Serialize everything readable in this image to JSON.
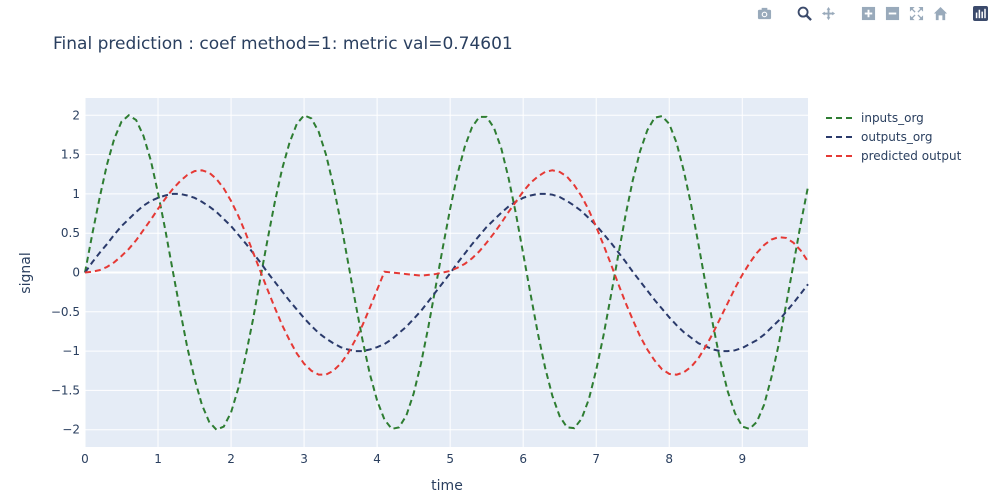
{
  "title": "Final prediction : coef method=1: metric val=0.74601",
  "modebar": {
    "buttons": [
      "camera-icon",
      "zoom-icon",
      "pan-icon",
      "zoom-in-icon",
      "zoom-out-icon",
      "autoscale-icon",
      "home-icon",
      "plotly-logo-icon"
    ]
  },
  "colors": {
    "plot_bg": "#e5ecf6",
    "grid": "#ffffff",
    "text": "#2a3f5f",
    "inputs_org": "#2e7d32",
    "outputs_org": "#2a3a6b",
    "predicted": "#e53935"
  },
  "chart_data": {
    "type": "line",
    "title": "Final prediction : coef method=1: metric val=0.74601",
    "xlabel": "time",
    "ylabel": "signal",
    "xlim": [
      0,
      9.9
    ],
    "ylim": [
      -2.22,
      2.22
    ],
    "xticks": [
      0,
      1,
      2,
      3,
      4,
      5,
      6,
      7,
      8,
      9
    ],
    "yticks": [
      2,
      1.5,
      1,
      0.5,
      0,
      -0.5,
      -1,
      -1.5,
      -2
    ],
    "ytick_labels": [
      "2",
      "1.5",
      "1",
      "0.5",
      "0",
      "−0.5",
      "−1",
      "−1.5",
      "−2"
    ],
    "grid": true,
    "legend_position": "top-right outside",
    "x": [
      0,
      0.1,
      0.2,
      0.3,
      0.4,
      0.5,
      0.6,
      0.7,
      0.8,
      0.9,
      1.0,
      1.1,
      1.2,
      1.3,
      1.4,
      1.5,
      1.6,
      1.7,
      1.8,
      1.9,
      2.0,
      2.1,
      2.2,
      2.3,
      2.4,
      2.5,
      2.6,
      2.7,
      2.8,
      2.9,
      3.0,
      3.1,
      3.2,
      3.3,
      3.4,
      3.5,
      3.6,
      3.7,
      3.8,
      3.9,
      4.0,
      4.1,
      4.2,
      4.3,
      4.4,
      4.5,
      4.6,
      4.7,
      4.8,
      4.9,
      5.0,
      5.1,
      5.2,
      5.3,
      5.4,
      5.5,
      5.6,
      5.7,
      5.8,
      5.9,
      6.0,
      6.1,
      6.2,
      6.3,
      6.4,
      6.5,
      6.6,
      6.7,
      6.8,
      6.9,
      7.0,
      7.1,
      7.2,
      7.3,
      7.4,
      7.5,
      7.6,
      7.7,
      7.8,
      7.9,
      8.0,
      8.1,
      8.2,
      8.3,
      8.4,
      8.5,
      8.6,
      8.7,
      8.8,
      8.9,
      9.0,
      9.1,
      9.2,
      9.3,
      9.4,
      9.5,
      9.6,
      9.7,
      9.8,
      9.9
    ],
    "series": [
      {
        "name": "inputs_org",
        "values": [
          0,
          0.49,
          0.95,
          1.37,
          1.7,
          1.92,
          2.0,
          1.94,
          1.74,
          1.43,
          1.01,
          0.54,
          0.03,
          -0.47,
          -0.95,
          -1.35,
          -1.68,
          -1.9,
          -2.0,
          -1.96,
          -1.78,
          -1.47,
          -1.06,
          -0.6,
          -0.08,
          0.42,
          0.9,
          1.32,
          1.65,
          1.89,
          2.0,
          1.96,
          1.79,
          1.5,
          1.11,
          0.65,
          0.14,
          -0.37,
          -0.86,
          -1.29,
          -1.63,
          -1.87,
          -1.99,
          -1.97,
          -1.82,
          -1.54,
          -1.16,
          -0.7,
          -0.19,
          0.32,
          0.81,
          1.25,
          1.6,
          1.85,
          1.98,
          1.98,
          1.84,
          1.58,
          1.2,
          0.75,
          0.24,
          -0.27,
          -0.77,
          -1.21,
          -1.57,
          -1.83,
          -1.97,
          -1.98,
          -1.86,
          -1.61,
          -1.24,
          -0.8,
          -0.3,
          0.21,
          0.72,
          1.17,
          1.54,
          1.81,
          1.97,
          1.99,
          1.89,
          1.65,
          1.29,
          0.86,
          0.36,
          -0.16,
          -0.67,
          -1.13,
          -1.51,
          -1.79,
          -1.96,
          -1.99,
          -1.9,
          -1.68,
          -1.33,
          -0.91,
          -0.41,
          0.1,
          0.62,
          1.09
        ]
      },
      {
        "name": "outputs_org",
        "values": [
          0,
          0.13,
          0.25,
          0.36,
          0.48,
          0.59,
          0.68,
          0.77,
          0.85,
          0.91,
          0.95,
          0.98,
          1.0,
          1.0,
          0.98,
          0.95,
          0.9,
          0.84,
          0.77,
          0.68,
          0.59,
          0.48,
          0.37,
          0.25,
          0.13,
          0.0,
          -0.12,
          -0.24,
          -0.36,
          -0.47,
          -0.58,
          -0.68,
          -0.77,
          -0.84,
          -0.9,
          -0.95,
          -0.98,
          -1.0,
          -1.0,
          -0.98,
          -0.95,
          -0.91,
          -0.85,
          -0.77,
          -0.69,
          -0.59,
          -0.49,
          -0.37,
          -0.25,
          -0.13,
          -0.01,
          0.12,
          0.24,
          0.36,
          0.47,
          0.58,
          0.67,
          0.76,
          0.84,
          0.9,
          0.95,
          0.98,
          1.0,
          1.0,
          0.99,
          0.96,
          0.91,
          0.85,
          0.78,
          0.69,
          0.6,
          0.49,
          0.38,
          0.26,
          0.14,
          0.01,
          -0.11,
          -0.23,
          -0.35,
          -0.46,
          -0.57,
          -0.67,
          -0.76,
          -0.83,
          -0.9,
          -0.94,
          -0.98,
          -1.0,
          -1.0,
          -0.99,
          -0.96,
          -0.91,
          -0.86,
          -0.79,
          -0.7,
          -0.61,
          -0.5,
          -0.39,
          -0.27,
          -0.15
        ]
      },
      {
        "name": "predicted output",
        "values": [
          0,
          0.01,
          0.03,
          0.07,
          0.13,
          0.21,
          0.3,
          0.41,
          0.54,
          0.67,
          0.81,
          0.94,
          1.06,
          1.16,
          1.24,
          1.29,
          1.3,
          1.27,
          1.19,
          1.07,
          0.91,
          0.72,
          0.5,
          0.26,
          0.02,
          -0.22,
          -0.45,
          -0.67,
          -0.86,
          -1.03,
          -1.16,
          -1.25,
          -1.3,
          -1.3,
          -1.25,
          -1.16,
          -1.03,
          -0.86,
          -0.67,
          -0.45,
          -0.22,
          0.01,
          0.0,
          -0.01,
          -0.02,
          -0.03,
          -0.04,
          -0.03,
          -0.02,
          0.0,
          0.02,
          0.06,
          0.11,
          0.18,
          0.27,
          0.38,
          0.5,
          0.63,
          0.77,
          0.9,
          1.03,
          1.14,
          1.22,
          1.28,
          1.3,
          1.28,
          1.22,
          1.11,
          0.97,
          0.79,
          0.58,
          0.35,
          0.11,
          -0.14,
          -0.38,
          -0.6,
          -0.81,
          -0.98,
          -1.12,
          -1.23,
          -1.29,
          -1.3,
          -1.27,
          -1.2,
          -1.09,
          -0.94,
          -0.77,
          -0.58,
          -0.39,
          -0.2,
          -0.03,
          0.12,
          0.25,
          0.35,
          0.42,
          0.45,
          0.44,
          0.38,
          0.28,
          0.14
        ]
      }
    ]
  }
}
